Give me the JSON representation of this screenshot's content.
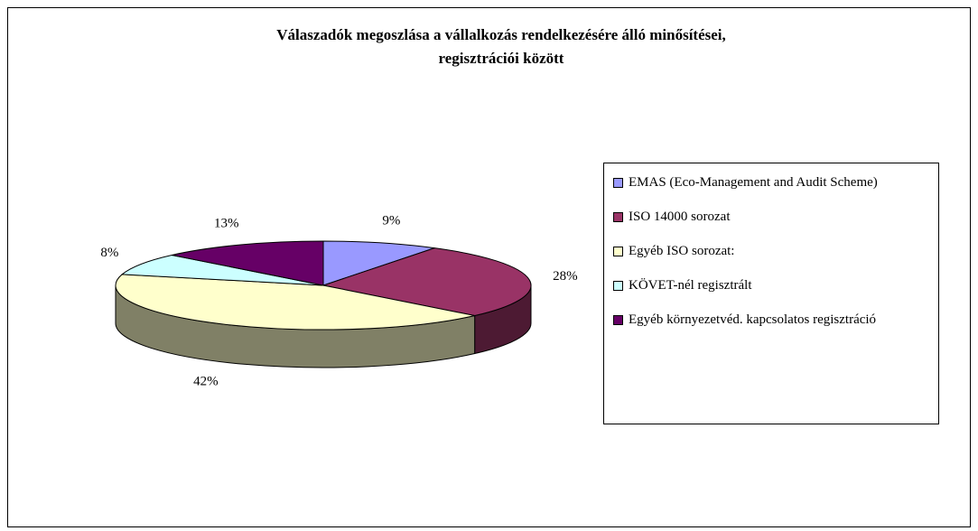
{
  "chart_data": {
    "type": "pie3d",
    "title": "Válaszadók megoszlása a vállalkozás rendelkezésére álló minősítései, regisztrációi között",
    "categories": [
      "EMAS (Eco-Management and Audit Scheme)",
      "ISO 14000 sorozat",
      "Egyéb ISO sorozat:",
      "KÖVET-nél regisztrált",
      "Egyéb környezetvéd. kapcsolatos regisztráció"
    ],
    "values": [
      9,
      28,
      42,
      8,
      13
    ],
    "value_labels": [
      "9%",
      "28%",
      "42%",
      "8%",
      "13%"
    ],
    "colors": [
      "#9999ff",
      "#993366",
      "#ffffcc",
      "#ccffff",
      "#660066"
    ],
    "legend": "right"
  }
}
